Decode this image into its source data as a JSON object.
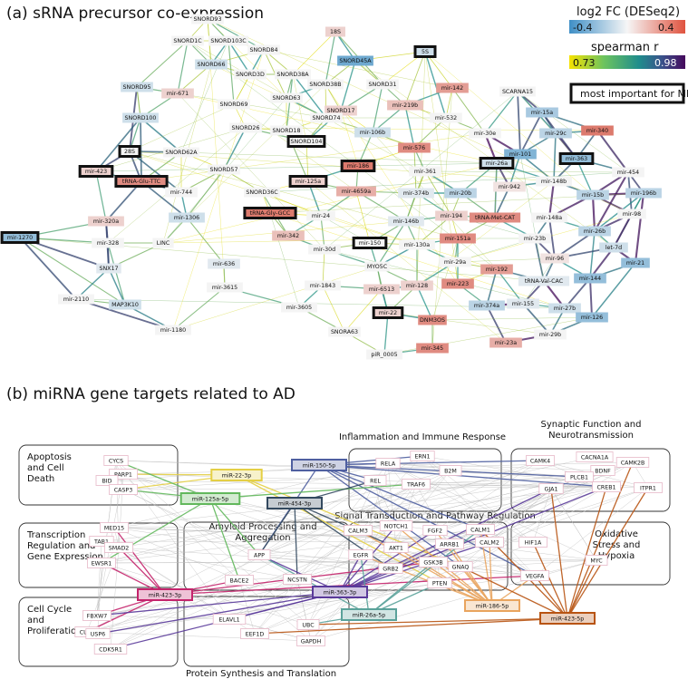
{
  "panel_a": {
    "title": "(a) sRNA precursor co-expression",
    "legend": {
      "fc_title": "log2 FC (DESeq2)",
      "fc_min": "-0.4",
      "fc_max": "0.4",
      "r_title": "spearman r",
      "r_min": "0.73",
      "r_max": "0.98",
      "important_label": "most important for ML"
    },
    "colors": {
      "fc_low": "#5b9ecb",
      "fc_mid": "#f4f4f4",
      "fc_high": "#d9685a",
      "r_low": "#f2e100",
      "r_mid": "#20908d",
      "r_high": "#440154"
    },
    "nodes": [
      {
        "label": "SNORD93",
        "fc": 0.0
      },
      {
        "label": "SNORD1C",
        "fc": 0.0
      },
      {
        "label": "SNORD103C",
        "fc": 0.0
      },
      {
        "label": "SNORD84",
        "fc": 0.0
      },
      {
        "label": "18S",
        "fc": 0.1
      },
      {
        "label": "5S",
        "fc": -0.1,
        "important": true
      },
      {
        "label": "SNORD66",
        "fc": -0.1
      },
      {
        "label": "SNORD3D",
        "fc": 0.0
      },
      {
        "label": "SNORD38A",
        "fc": 0.0
      },
      {
        "label": "SNORD45A",
        "fc": -0.35
      },
      {
        "label": "SNORD95",
        "fc": -0.1
      },
      {
        "label": "mir-671",
        "fc": 0.1
      },
      {
        "label": "SNORD63",
        "fc": 0.0
      },
      {
        "label": "SNORD38B",
        "fc": 0.0
      },
      {
        "label": "SNORD31",
        "fc": 0.0
      },
      {
        "label": "mir-142",
        "fc": 0.25
      },
      {
        "label": "SCARNA15",
        "fc": 0.0
      },
      {
        "label": "SNORD100",
        "fc": -0.1
      },
      {
        "label": "SNORD69",
        "fc": 0.0
      },
      {
        "label": "SNORD17",
        "fc": 0.1
      },
      {
        "label": "mir-219b",
        "fc": 0.15
      },
      {
        "label": "mir-15a",
        "fc": -0.2
      },
      {
        "label": "SNORD26",
        "fc": 0.0
      },
      {
        "label": "SNORD18",
        "fc": 0.0
      },
      {
        "label": "SNORD74",
        "fc": 0.0
      },
      {
        "label": "mir-532",
        "fc": 0.0
      },
      {
        "label": "mir-29c",
        "fc": -0.15
      },
      {
        "label": "mir-340",
        "fc": 0.35
      },
      {
        "label": "28S",
        "fc": 0.0,
        "important": true
      },
      {
        "label": "SNORD62A",
        "fc": 0.0
      },
      {
        "label": "SNORD104",
        "fc": 0.0,
        "important": true
      },
      {
        "label": "mir-106b",
        "fc": -0.1
      },
      {
        "label": "mir-576",
        "fc": 0.3
      },
      {
        "label": "mir-30e",
        "fc": 0.0
      },
      {
        "label": "mir-101",
        "fc": -0.3
      },
      {
        "label": "mir-363",
        "fc": -0.25,
        "important": true
      },
      {
        "label": "mir-423",
        "fc": 0.1,
        "important": true
      },
      {
        "label": "tRNA-Glu-TTC",
        "fc": 0.3,
        "important": true
      },
      {
        "label": "SNORD57",
        "fc": 0.0
      },
      {
        "label": "mir-186",
        "fc": 0.35,
        "important": true
      },
      {
        "label": "mir-361",
        "fc": 0.0
      },
      {
        "label": "mir-26a",
        "fc": -0.1,
        "important": true
      },
      {
        "label": "mir-454",
        "fc": 0.0
      },
      {
        "label": "mir-942",
        "fc": 0.05
      },
      {
        "label": "mir-148b",
        "fc": 0.0
      },
      {
        "label": "mir-196b",
        "fc": -0.15
      },
      {
        "label": "mir-744",
        "fc": 0.0
      },
      {
        "label": "SNORD36C",
        "fc": 0.0
      },
      {
        "label": "mir-125a",
        "fc": 0.1,
        "important": true
      },
      {
        "label": "mir-4659a",
        "fc": 0.2
      },
      {
        "label": "mir-374b",
        "fc": -0.05
      },
      {
        "label": "mir-20b",
        "fc": -0.15
      },
      {
        "label": "mir-15b",
        "fc": -0.15
      },
      {
        "label": "mir-1270",
        "fc": -0.25,
        "important": true
      },
      {
        "label": "mir-320a",
        "fc": 0.1
      },
      {
        "label": "mir-1306",
        "fc": -0.1
      },
      {
        "label": "tRNA-Gly-GCC",
        "fc": 0.35,
        "important": true
      },
      {
        "label": "mir-24",
        "fc": 0.0
      },
      {
        "label": "mir-146b",
        "fc": -0.05
      },
      {
        "label": "mir-194",
        "fc": 0.1
      },
      {
        "label": "tRNA-Met-CAT",
        "fc": 0.3
      },
      {
        "label": "mir-148a",
        "fc": 0.0
      },
      {
        "label": "mir-98",
        "fc": 0.0
      },
      {
        "label": "mir-328",
        "fc": 0.0
      },
      {
        "label": "LINC",
        "fc": 0.0
      },
      {
        "label": "mir-342",
        "fc": 0.15
      },
      {
        "label": "mir-150",
        "fc": 0.0,
        "important": true
      },
      {
        "label": "mir-130a",
        "fc": 0.0
      },
      {
        "label": "mir-151a",
        "fc": 0.3
      },
      {
        "label": "mir-23b",
        "fc": 0.0
      },
      {
        "label": "mir-26b",
        "fc": -0.15
      },
      {
        "label": "let-7d",
        "fc": -0.1
      },
      {
        "label": "SNX17",
        "fc": -0.05
      },
      {
        "label": "mir-30d",
        "fc": 0.0
      },
      {
        "label": "mir-636",
        "fc": -0.05
      },
      {
        "label": "MYO5C",
        "fc": 0.0
      },
      {
        "label": "mir-29a",
        "fc": 0.0
      },
      {
        "label": "mir-192",
        "fc": 0.25
      },
      {
        "label": "mir-96",
        "fc": 0.05
      },
      {
        "label": "mir-21",
        "fc": -0.25
      },
      {
        "label": "mir-3615",
        "fc": 0.0
      },
      {
        "label": "mir-1843",
        "fc": 0.0
      },
      {
        "label": "mir-6513",
        "fc": 0.1
      },
      {
        "label": "mir-128",
        "fc": 0.1
      },
      {
        "label": "mir-223",
        "fc": 0.3
      },
      {
        "label": "tRNA-Val-CAC",
        "fc": -0.05
      },
      {
        "label": "mir-144",
        "fc": -0.25
      },
      {
        "label": "mir-2110",
        "fc": 0.0
      },
      {
        "label": "MAP3K10",
        "fc": -0.1
      },
      {
        "label": "mir-3605",
        "fc": 0.0
      },
      {
        "label": "mir-22",
        "fc": 0.1,
        "important": true
      },
      {
        "label": "mir-374a",
        "fc": -0.15
      },
      {
        "label": "mir-155",
        "fc": -0.05
      },
      {
        "label": "mir-27b",
        "fc": -0.1
      },
      {
        "label": "mir-126",
        "fc": -0.25
      },
      {
        "label": "mir-1180",
        "fc": 0.0
      },
      {
        "label": "SNORA63",
        "fc": 0.0
      },
      {
        "label": "DNM3OS",
        "fc": 0.3
      },
      {
        "label": "mir-29b",
        "fc": 0.0
      },
      {
        "label": "mir-345",
        "fc": 0.3
      },
      {
        "label": "mir-23a",
        "fc": 0.2
      },
      {
        "label": "piR_0005",
        "fc": 0.0
      }
    ]
  },
  "panel_b": {
    "title": "(b) miRNA gene targets related to AD",
    "groups": [
      {
        "id": "apoptosis",
        "lines": [
          "Apoptosis",
          "and Cell",
          "Death"
        ]
      },
      {
        "id": "inflammation",
        "lines": [
          "Inflammation and Immune Response"
        ]
      },
      {
        "id": "synaptic",
        "lines": [
          "Synaptic Function and",
          "Neurotransmission"
        ]
      },
      {
        "id": "transcription",
        "lines": [
          "Transcription",
          "Regulation and",
          "Gene Expression"
        ]
      },
      {
        "id": "amyloid",
        "lines": [
          "Amyloid Processing and",
          "Aggregation"
        ]
      },
      {
        "id": "signal",
        "lines": [
          "Signal Transduction and Pathway Regulation"
        ]
      },
      {
        "id": "oxidative",
        "lines": [
          "Oxidative",
          "Stress and",
          "Hypoxia"
        ]
      },
      {
        "id": "cellcycle",
        "lines": [
          "Cell Cycle",
          "and",
          "Proliferation"
        ]
      },
      {
        "id": "protein",
        "lines": [
          "Protein Synthesis and Translation"
        ]
      }
    ],
    "mirnas": [
      {
        "label": "miR-150-5p",
        "color": "#4f5fa0"
      },
      {
        "label": "miR-22-3p",
        "color": "#e4cf45"
      },
      {
        "label": "miR-125a-5p",
        "color": "#62b85c"
      },
      {
        "label": "miR-454-3p",
        "color": "#33495f"
      },
      {
        "label": "miR-423-3p",
        "color": "#c4246c"
      },
      {
        "label": "miR-363-3p",
        "color": "#5a3a9a"
      },
      {
        "label": "miR-186-5p",
        "color": "#e9a45e"
      },
      {
        "label": "miR-26a-5p",
        "color": "#5aa29a"
      },
      {
        "label": "miR-423-5p",
        "color": "#b85413"
      }
    ],
    "genes": [
      "CYCS",
      "PARP1",
      "BID",
      "CASP3",
      "RELA",
      "ERN1",
      "REL",
      "B2M",
      "TRAF6",
      "CAMK4",
      "CACNA1A",
      "BDNF",
      "CAMK2B",
      "PLCB1",
      "GJA1",
      "CREB1",
      "ITPR1",
      "MED15",
      "TAB1",
      "SMAD2",
      "EWSR1",
      "APP",
      "BACE2",
      "NCSTN",
      "CALM3",
      "NOTCH1",
      "FGF2",
      "CALM1",
      "EGFR",
      "AKT1",
      "ARRB1",
      "CALM2",
      "GRB2",
      "GSK3B",
      "GNAQ",
      "PTEN",
      "HIF1A",
      "VEGFA",
      "MYC",
      "FBXW7",
      "CUL3",
      "USP6",
      "CDK5R1",
      "ELAVL1",
      "EEF1D",
      "UBC",
      "GAPDH"
    ]
  }
}
